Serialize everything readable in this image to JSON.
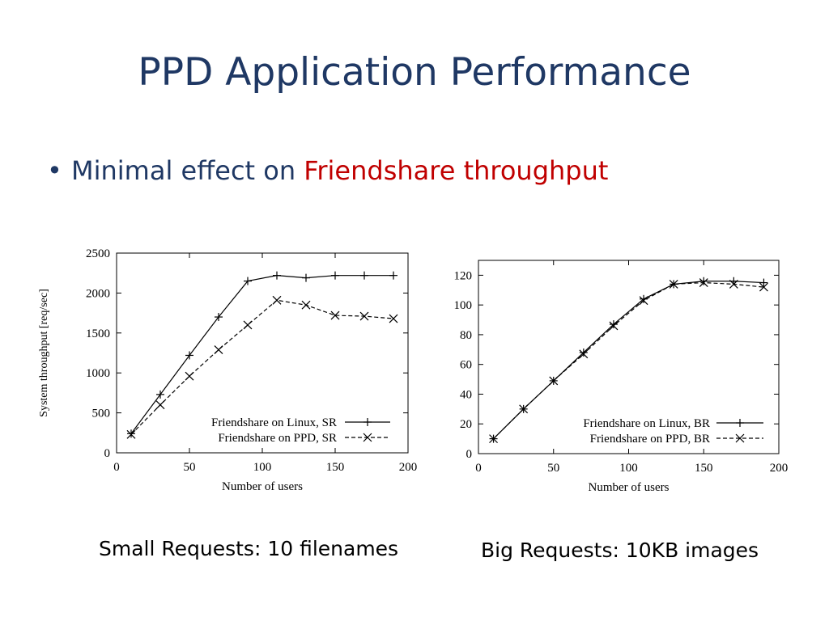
{
  "slide": {
    "title": "PPD Application Performance",
    "bullet_prefix": "Minimal effect on ",
    "bullet_highlight": "Friendshare throughput",
    "title_color": "#1f3864",
    "highlight_color": "#c00000"
  },
  "captions": {
    "left": "Small Requests: 10 filenames",
    "right": "Big Requests: 10KB images"
  },
  "chart_data": [
    {
      "type": "line",
      "xlabel": "Number of users",
      "ylabel": "System throughput [req/sec]",
      "xlim": [
        0,
        200
      ],
      "ylim": [
        0,
        2500
      ],
      "xticks": [
        0,
        50,
        100,
        150,
        200
      ],
      "yticks": [
        0,
        500,
        1000,
        1500,
        2000,
        2500
      ],
      "legend_position": "bottom-right",
      "series": [
        {
          "name": "Friendshare on Linux, SR",
          "marker": "plus",
          "dash": "solid",
          "x": [
            10,
            30,
            50,
            70,
            90,
            110,
            130,
            150,
            170,
            190
          ],
          "y": [
            240,
            730,
            1220,
            1700,
            2150,
            2220,
            2190,
            2220,
            2220,
            2220
          ]
        },
        {
          "name": "Friendshare on PPD, SR",
          "marker": "cross",
          "dash": "dashed",
          "x": [
            10,
            30,
            50,
            70,
            90,
            110,
            130,
            150,
            170,
            190
          ],
          "y": [
            230,
            600,
            960,
            1290,
            1600,
            1910,
            1850,
            1720,
            1710,
            1680
          ]
        }
      ]
    },
    {
      "type": "line",
      "xlabel": "Number of users",
      "ylabel": "",
      "xlim": [
        0,
        200
      ],
      "ylim": [
        0,
        130
      ],
      "xticks": [
        0,
        50,
        100,
        150,
        200
      ],
      "yticks": [
        0,
        20,
        40,
        60,
        80,
        100,
        120
      ],
      "legend_position": "bottom-right",
      "series": [
        {
          "name": "Friendshare on Linux, BR",
          "marker": "plus",
          "dash": "solid",
          "x": [
            10,
            30,
            50,
            70,
            90,
            110,
            130,
            150,
            170,
            190
          ],
          "y": [
            10,
            30,
            49,
            68,
            87,
            104,
            114,
            116,
            116,
            115
          ]
        },
        {
          "name": "Friendshare on PPD, BR",
          "marker": "cross",
          "dash": "dashed",
          "x": [
            10,
            30,
            50,
            70,
            90,
            110,
            130,
            150,
            170,
            190
          ],
          "y": [
            10,
            30,
            49,
            67,
            86,
            103,
            114,
            115,
            114,
            112
          ]
        }
      ]
    }
  ]
}
